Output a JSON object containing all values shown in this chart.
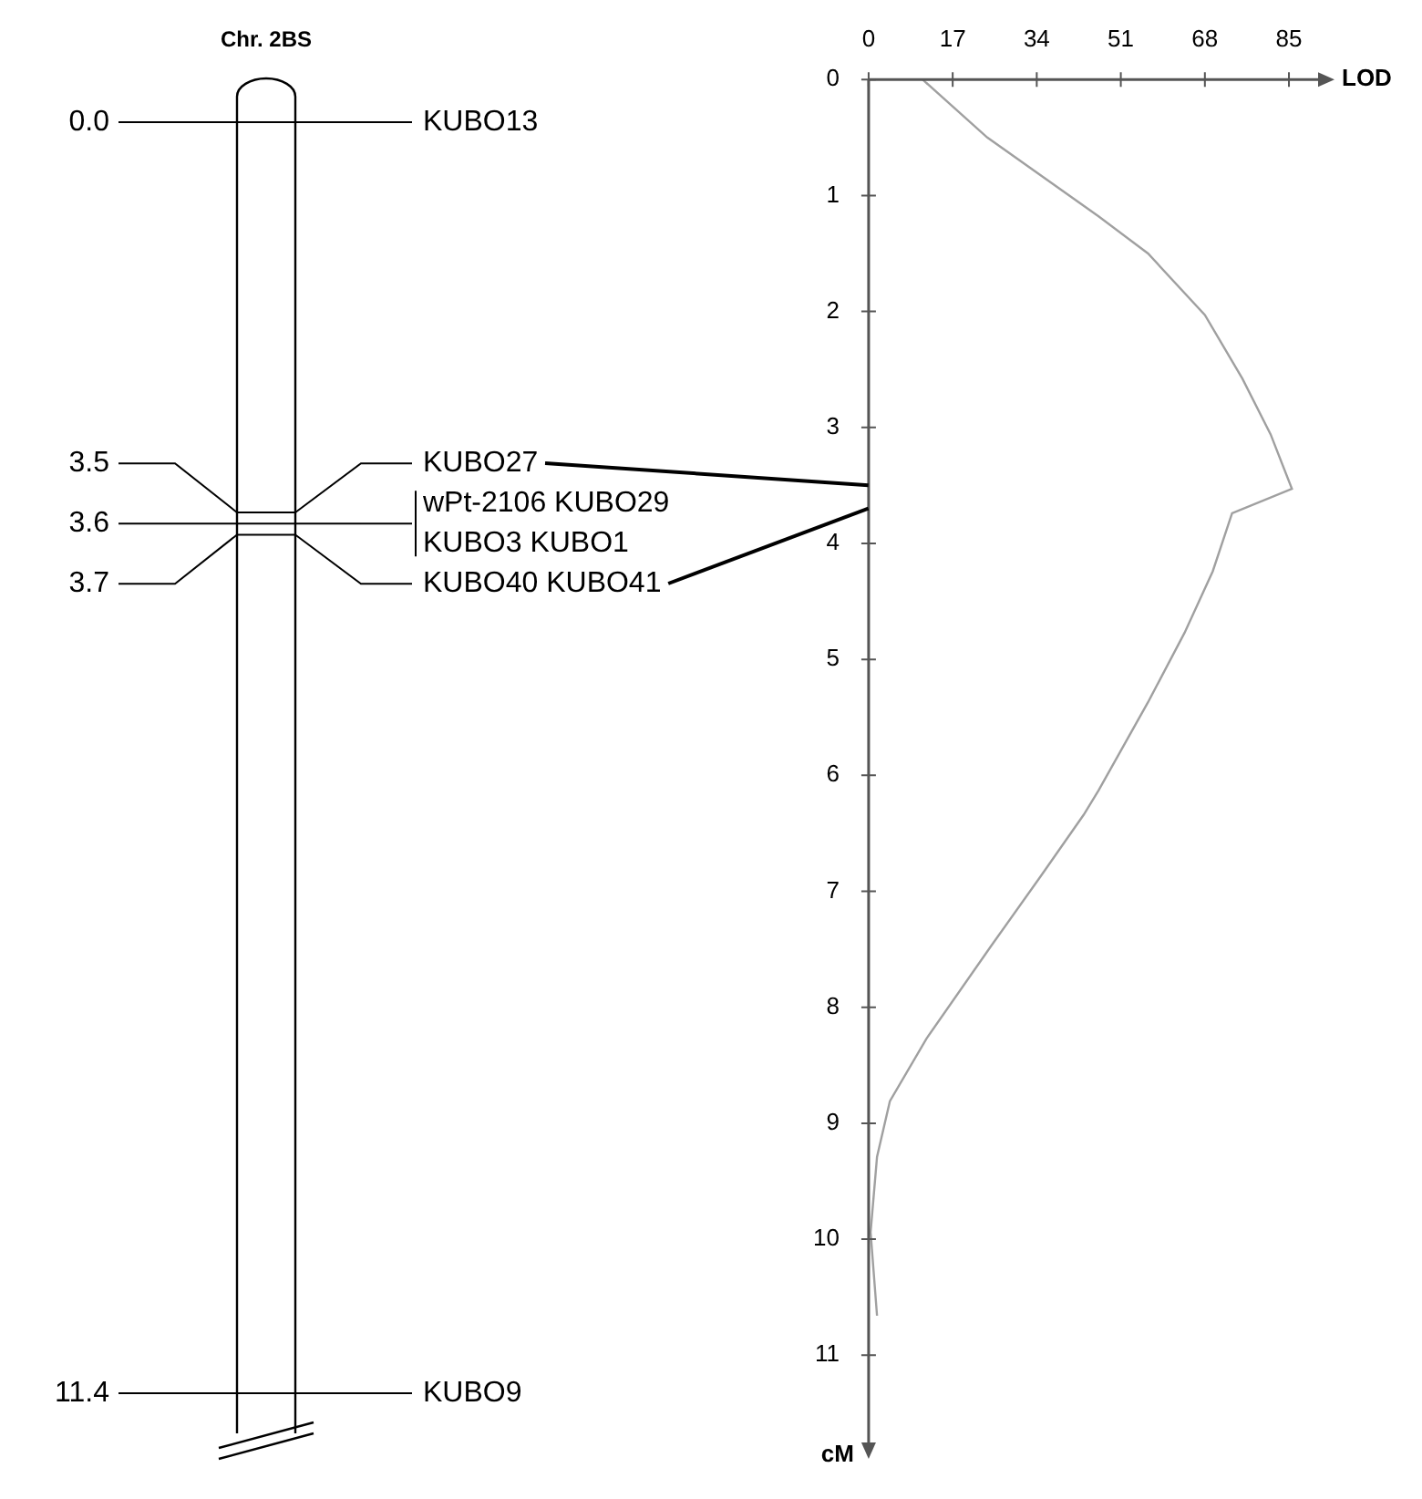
{
  "chart_data": [
    {
      "type": "other",
      "title": "Chr. 2BS",
      "categories": [
        "KUBO13",
        "KUBO27",
        "wPt-2106 KUBO29\nKUBO3 KUBO1",
        "KUBO40 KUBO41",
        "KUBO9"
      ],
      "values": [
        0.0,
        3.5,
        3.6,
        3.7,
        11.4
      ],
      "value_labels": [
        "0.0",
        "3.5",
        "3.6",
        "3.7",
        "11.4"
      ]
    },
    {
      "type": "line",
      "xlabel": "LOD",
      "ylabel": "cM",
      "color": "#a0a0a0",
      "xlim": [
        0,
        92
      ],
      "xticks": [
        0,
        17,
        34,
        51,
        68,
        85
      ],
      "ylim": [
        11.8,
        0
      ],
      "yticks": [
        0,
        1,
        2,
        3,
        4,
        5,
        6,
        7,
        8,
        9,
        10,
        11
      ],
      "x": [
        10.9,
        24,
        46.5,
        56.5,
        68,
        75.6,
        81.3,
        85.6,
        73.5,
        69.6,
        63.9,
        56.5,
        46.5,
        43.5,
        34.8,
        24.8,
        11.7,
        4.3,
        1.7,
        0.4,
        1.7
      ],
      "values": [
        0,
        0.5,
        1.18,
        1.5,
        2.03,
        2.58,
        3.06,
        3.53,
        3.74,
        4.24,
        4.77,
        5.37,
        6.13,
        6.34,
        6.87,
        7.47,
        8.27,
        8.81,
        9.29,
        9.94,
        10.66
      ]
    }
  ]
}
